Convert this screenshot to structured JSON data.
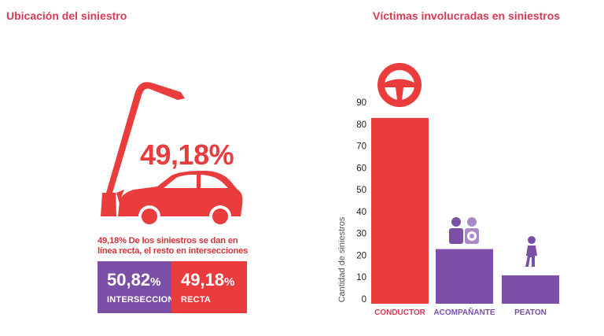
{
  "left": {
    "title": "Ubicación del siniestro",
    "big_percent": "49,18%",
    "caption": "49,18% De los siniestros se dan en línea recta, el resto en intersecciones",
    "boxes": [
      {
        "value_number": "50,82",
        "value_suffix": "%",
        "label": "INTERSECCION",
        "color": "#7b4fa6"
      },
      {
        "value_number": "49,18",
        "value_suffix": "%",
        "label": "RECTA",
        "color": "#ea3b3d"
      }
    ]
  },
  "right": {
    "title": "Víctimas involucradas en siniestros"
  },
  "colors": {
    "title": "#d63a55",
    "red": "#ea3b3d",
    "purple": "#7b4fa6",
    "purple_light": "#a889c8"
  },
  "icons": [
    "street-lamp-icon",
    "crashed-car-icon",
    "steering-wheel-icon",
    "passenger-icon",
    "pedestrian-icon"
  ],
  "chart_data": {
    "type": "bar",
    "categories": [
      "CONDUCTOR",
      "ACOMPAÑANTE",
      "PEATON"
    ],
    "values": [
      85,
      25,
      13
    ],
    "bar_colors": [
      "#ea3b3d",
      "#7b4fa6",
      "#7b4fa6"
    ],
    "label_colors": [
      "#d63a55",
      "#7b4fa6",
      "#7b4fa6"
    ],
    "ylabel": "Cantidad de siniestros",
    "xlabel": "",
    "ylim": [
      0,
      90
    ],
    "yticks": [
      0,
      10,
      20,
      30,
      40,
      50,
      60,
      70,
      80,
      90
    ],
    "grid": false
  }
}
